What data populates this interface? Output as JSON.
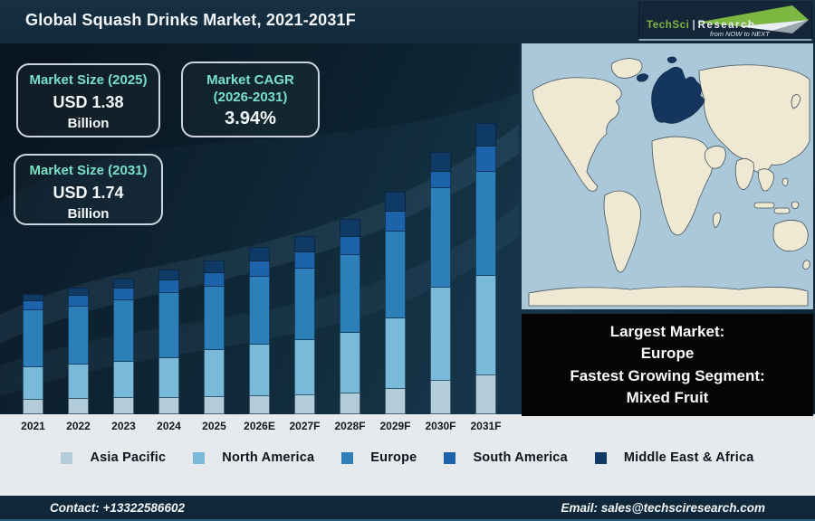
{
  "header": {
    "title": "Global Squash Drinks Market, 2021-2031F",
    "logo": {
      "brand": "TechSci",
      "divider": "|",
      "brand2": "Research",
      "tagline": "from NOW to NEXT"
    }
  },
  "stat_boxes": [
    {
      "label": "Market Size (2025)",
      "value": "USD 1.38",
      "unit": "Billion"
    },
    {
      "label": "Market CAGR (2026-2031)",
      "value": "3.94%",
      "unit": ""
    },
    {
      "label": "Market Size (2031)",
      "value": "USD 1.74",
      "unit": "Billion"
    }
  ],
  "chart_data": {
    "type": "bar",
    "stacked": true,
    "title": "Global Squash Drinks Market, 2021-2031F",
    "xlabel": "",
    "ylabel": "",
    "axis_values_shown": false,
    "values_unit": "relative bar height in px (no value axis shown in figure)",
    "legend_position": "bottom",
    "categories": [
      "2021",
      "2022",
      "2023",
      "2024",
      "2025",
      "2026E",
      "2027F",
      "2028F",
      "2029F",
      "2030F",
      "2031F"
    ],
    "series": [
      {
        "name": "Asia Pacific",
        "color": "#b2cdd9",
        "values": [
          16,
          17,
          18,
          18,
          19,
          20,
          21,
          23,
          28,
          37,
          43
        ]
      },
      {
        "name": "North America",
        "color": "#79bada",
        "values": [
          36,
          38,
          40,
          44,
          52,
          57,
          61,
          67,
          78,
          103,
          110
        ]
      },
      {
        "name": "Europe",
        "color": "#2d7fba",
        "values": [
          63,
          64,
          68,
          72,
          70,
          75,
          79,
          86,
          96,
          110,
          115
        ]
      },
      {
        "name": "South America",
        "color": "#1c63ab",
        "values": [
          10,
          12,
          13,
          14,
          15,
          17,
          18,
          20,
          22,
          18,
          28
        ]
      },
      {
        "name": "Middle East & Africa",
        "color": "#0f3a66",
        "values": [
          8,
          9,
          11,
          12,
          14,
          16,
          18,
          20,
          22,
          22,
          26
        ]
      }
    ],
    "known_totals": {
      "2025": "USD 1.38 Billion",
      "2031": "USD 1.74 Billion",
      "cagr_2026_2031": "3.94%"
    }
  },
  "highlight_box": {
    "lines": [
      "Largest Market:",
      "Europe",
      "Fastest Growing Segment:",
      "Mixed Fruit"
    ]
  },
  "map": {
    "highlighted_region": "Europe",
    "ocean_color": "#abc8da",
    "land_color": "#efe9d3",
    "highlight_color": "#14365e"
  },
  "footer": {
    "contact": "Contact: +13322586602",
    "email": "Email: sales@techsciresearch.com"
  },
  "colors": {
    "header_bg": "#122a3c",
    "main_bg": "#0f2736",
    "accent_teal": "#79dfc7",
    "band_bg": "#e7eaec",
    "info_box_bg": "#050505",
    "footer_bg": "#10283a",
    "logo_green": "#7cb742"
  }
}
